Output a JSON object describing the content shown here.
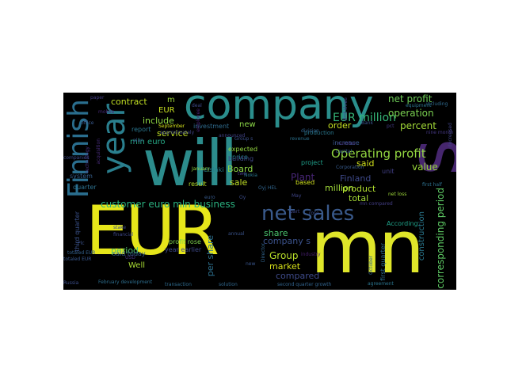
{
  "word_cloud": {
    "background": "#000000",
    "words": [
      {
        "text": "company",
        "color": "#2a8e8c"
      },
      {
        "text": "will",
        "color": "#2c8c8c"
      },
      {
        "text": "EUR",
        "color": "#e6e61a"
      },
      {
        "text": "mn",
        "color": "#dfe62a"
      },
      {
        "text": "s",
        "color": "#46266e"
      },
      {
        "text": "Finnish",
        "color": "#2a6e8e"
      },
      {
        "text": "year",
        "color": "#2a7f8e"
      },
      {
        "text": "net sales",
        "color": "#3a5a8c"
      },
      {
        "text": "Operating profit",
        "color": "#93d741"
      },
      {
        "text": "EUR million",
        "color": "#35b779"
      },
      {
        "text": "customer euro mln business",
        "color": "#2ab07f"
      },
      {
        "text": "corresponding period",
        "color": "#5dc863"
      },
      {
        "text": "net profit",
        "color": "#6ece58"
      },
      {
        "text": "operation",
        "color": "#7ad151"
      },
      {
        "text": "percent",
        "color": "#a2da37"
      },
      {
        "text": "value",
        "color": "#9bd93c"
      },
      {
        "text": "contract",
        "color": "#c2df23"
      },
      {
        "text": "include",
        "color": "#8fd744"
      },
      {
        "text": "service",
        "color": "#c0df25"
      },
      {
        "text": "mln euro",
        "color": "#26a784"
      },
      {
        "text": "Board",
        "color": "#8ed645"
      },
      {
        "text": "Plant",
        "color": "#482677"
      },
      {
        "text": "Finland",
        "color": "#3e4989"
      },
      {
        "text": "million",
        "color": "#a0da39"
      },
      {
        "text": "total",
        "color": "#a5db36"
      },
      {
        "text": "product",
        "color": "#b0dd2f"
      },
      {
        "text": "order",
        "color": "#c5e021"
      },
      {
        "text": "new",
        "color": "#8bd646"
      },
      {
        "text": "sale",
        "color": "#c0df25"
      },
      {
        "text": "project",
        "color": "#1f9e89"
      },
      {
        "text": "said",
        "color": "#d2e21b"
      },
      {
        "text": "Group",
        "color": "#b8de29"
      },
      {
        "text": "company s",
        "color": "#3b528b"
      },
      {
        "text": "market",
        "color": "#d8e219"
      },
      {
        "text": "compared",
        "color": "#3e4a89"
      },
      {
        "text": "share",
        "color": "#4ac16d"
      },
      {
        "text": "period",
        "color": "#52c569"
      },
      {
        "text": "per share",
        "color": "#2d708e"
      },
      {
        "text": "Well",
        "color": "#a8db34"
      },
      {
        "text": "year earlier",
        "color": "#3e4989"
      },
      {
        "text": "profit rose",
        "color": "#7fd34e"
      },
      {
        "text": "said today",
        "color": "#35608d"
      },
      {
        "text": "EUR",
        "color": "#c8e020"
      },
      {
        "text": "m",
        "color": "#9dd93b"
      },
      {
        "text": "expected",
        "color": "#95d840"
      },
      {
        "text": "price",
        "color": "#25838e"
      },
      {
        "text": "Helsinki",
        "color": "#27808e"
      },
      {
        "text": "result",
        "color": "#b5de2b"
      },
      {
        "text": "report",
        "color": "#2a768e"
      },
      {
        "text": "increase",
        "color": "#39568c"
      },
      {
        "text": "based",
        "color": "#d0e11c"
      },
      {
        "text": "unit",
        "color": "#424086"
      },
      {
        "text": "building",
        "color": "#3f4788"
      },
      {
        "text": "investment",
        "color": "#2f6c8e"
      },
      {
        "text": "system",
        "color": "#355f8d"
      },
      {
        "text": "quarter",
        "color": "#2d718e"
      },
      {
        "text": "third quarter",
        "color": "#3b528b"
      },
      {
        "text": "construction",
        "color": "#2a788e"
      },
      {
        "text": "According",
        "color": "#1fa188"
      },
      {
        "text": "first quarter",
        "color": "#2e6f8e"
      },
      {
        "text": "totaled EUR",
        "color": "#34618d"
      },
      {
        "text": "financial",
        "color": "#3f4889"
      },
      {
        "text": "stake",
        "color": "#3d4d8a"
      },
      {
        "text": "production",
        "color": "#2a788e"
      },
      {
        "text": "revenue",
        "color": "#2c728e"
      },
      {
        "text": "division",
        "color": "#32658e"
      },
      {
        "text": "Corporation",
        "color": "#375b8d"
      },
      {
        "text": "September",
        "color": "#d5e21a"
      },
      {
        "text": "January",
        "color": "#95d840"
      },
      {
        "text": "October",
        "color": "#33638d"
      },
      {
        "text": "February development",
        "color": "#2e6e8e"
      },
      {
        "text": "transaction",
        "color": "#2f6b8e"
      },
      {
        "text": "solution",
        "color": "#31678e"
      },
      {
        "text": "second quarter growth",
        "color": "#32648e"
      },
      {
        "text": "agreement",
        "color": "#2b758e"
      },
      {
        "text": "Russia",
        "color": "#3c4f8a"
      },
      {
        "text": "annual",
        "color": "#3a538b"
      },
      {
        "text": "capital",
        "color": "#365c8d"
      },
      {
        "text": "net loss",
        "color": "#9fda3a"
      },
      {
        "text": "Nokia",
        "color": "#2a778e"
      },
      {
        "text": "office",
        "color": "#38598c"
      },
      {
        "text": "paper",
        "color": "#433d84"
      },
      {
        "text": "deal",
        "color": "#3e4a89"
      },
      {
        "text": "Plc",
        "color": "#3b528b"
      },
      {
        "text": "Oyj HEL",
        "color": "#31668e"
      },
      {
        "text": "first half",
        "color": "#2d708e"
      },
      {
        "text": "equipment",
        "color": "#2c738e"
      },
      {
        "text": "including",
        "color": "#2f6b8e"
      },
      {
        "text": "Bank",
        "color": "#3a548c"
      },
      {
        "text": "rose",
        "color": "#3c4f8a"
      },
      {
        "text": "part",
        "color": "#3f4788"
      },
      {
        "text": "May",
        "color": "#404688"
      },
      {
        "text": "Director",
        "color": "#32658e"
      },
      {
        "text": "two",
        "color": "#443a83"
      },
      {
        "text": "USD",
        "color": "#463480"
      },
      {
        "text": "industry",
        "color": "#481f70"
      },
      {
        "text": "employee",
        "color": "#482475"
      },
      {
        "text": "mobile",
        "color": "#482878"
      },
      {
        "text": "acquisition",
        "color": "#472c7a"
      },
      {
        "text": "technology",
        "color": "#46307e"
      },
      {
        "text": "number",
        "color": "#45347f"
      },
      {
        "text": "nine month",
        "color": "#453781"
      },
      {
        "text": "pct",
        "color": "#443b84"
      },
      {
        "text": "mn compared",
        "color": "#433e85"
      },
      {
        "text": "first three",
        "color": "#424186"
      },
      {
        "text": "announced",
        "color": "#414287"
      },
      {
        "text": "decreased",
        "color": "#414487"
      },
      {
        "text": "approximately",
        "color": "#404588"
      },
      {
        "text": "companies",
        "color": "#3f4a8a"
      },
      {
        "text": "Oy",
        "color": "#3d4d8a"
      },
      {
        "text": "Group s",
        "color": "#3c508b"
      },
      {
        "text": "plan",
        "color": "#3b528b"
      },
      {
        "text": "new",
        "color": "#39558c"
      },
      {
        "text": "totaled EUR",
        "color": "#38578c"
      },
      {
        "text": "euro",
        "color": "#375a8c"
      }
    ]
  }
}
